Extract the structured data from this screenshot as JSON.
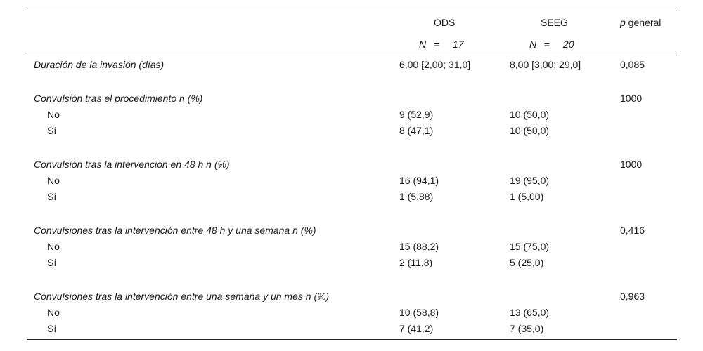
{
  "header": {
    "col1": "ODS",
    "col2": "SEEG",
    "col3_italic": "p",
    "col3_rest": " general",
    "n_symbol": "N",
    "equals": "=",
    "n1": "17",
    "n2": "20"
  },
  "rows": {
    "r0": {
      "label": "Duración de la invasión (días)",
      "ods": "6,00 [2,00; 31,0]",
      "seeg": "8,00 [3,00; 29,0]",
      "p": "0,085"
    },
    "r1": {
      "label": "Convulsión tras el procedimiento n (%)",
      "p": "1000",
      "no": {
        "label": "No",
        "ods": "9 (52,9)",
        "seeg": "10 (50,0)"
      },
      "si": {
        "label": "Sí",
        "ods": "8 (47,1)",
        "seeg": "10 (50,0)"
      }
    },
    "r2": {
      "label": "Convulsión tras la intervención en 48 h n (%)",
      "p": "1000",
      "no": {
        "label": "No",
        "ods": "16 (94,1)",
        "seeg": "19 (95,0)"
      },
      "si": {
        "label": "Sí",
        "ods": "1 (5,88)",
        "seeg": "1 (5,00)"
      }
    },
    "r3": {
      "label": "Convulsiones tras la intervención entre 48 h y una semana n (%)",
      "p": "0,416",
      "no": {
        "label": "No",
        "ods": "15 (88,2)",
        "seeg": "15 (75,0)"
      },
      "si": {
        "label": "Sí",
        "ods": "2 (11,8)",
        "seeg": "5 (25,0)"
      }
    },
    "r4": {
      "label": "Convulsiones tras la intervención entre una semana y un mes n (%)",
      "p": "0,963",
      "no": {
        "label": "No",
        "ods": "10 (58,8)",
        "seeg": "13 (65,0)"
      },
      "si": {
        "label": "Sí",
        "ods": "7 (41,2)",
        "seeg": "7 (35,0)"
      }
    }
  }
}
